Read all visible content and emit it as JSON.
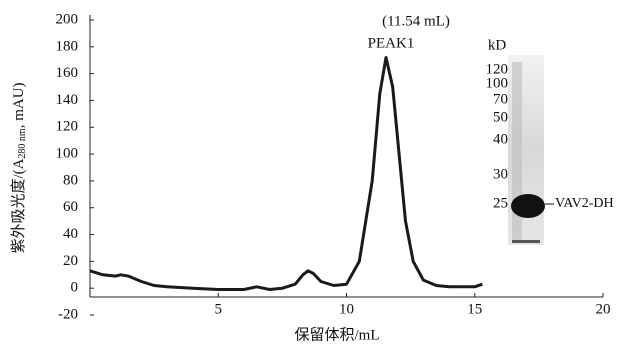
{
  "chart_data": {
    "type": "line",
    "ylabel": {
      "main": "紫外吸光度/(A",
      "subscript": "280 nm",
      "end": ", mAU)"
    },
    "xlabel": "保留体积/mL",
    "annotation": {
      "volume": "(11.54 mL)",
      "peak": "PEAK1"
    },
    "x": [
      0,
      0.5,
      1,
      1.2,
      1.5,
      2,
      2.5,
      3,
      4,
      5,
      6,
      6.5,
      7,
      7.5,
      8,
      8.3,
      8.5,
      8.7,
      9,
      9.5,
      10,
      10.5,
      11,
      11.3,
      11.54,
      11.8,
      12,
      12.3,
      12.6,
      13,
      13.5,
      14,
      14.5,
      15,
      15.3
    ],
    "series": [
      {
        "color": "#1a1a1a",
        "values": [
          13,
          10,
          9,
          10,
          9,
          5,
          2,
          1,
          0,
          -1,
          -1,
          1,
          -1,
          0,
          3,
          10,
          13,
          11,
          5,
          2,
          3,
          20,
          80,
          145,
          172,
          150,
          110,
          50,
          20,
          6,
          2,
          1,
          1,
          1,
          3
        ]
      }
    ],
    "xlim": [
      0,
      20
    ],
    "xticks": [
      5,
      10,
      15,
      20
    ],
    "ylim": [
      -20,
      200
    ],
    "yticks": [
      -20,
      0,
      20,
      40,
      60,
      80,
      100,
      120,
      140,
      160,
      180,
      200
    ],
    "gel": {
      "unit_label": "kD",
      "markers": [
        "120",
        "100",
        "70",
        "50",
        "40",
        "30",
        "25"
      ],
      "band_label": "VAV2-DH"
    }
  }
}
